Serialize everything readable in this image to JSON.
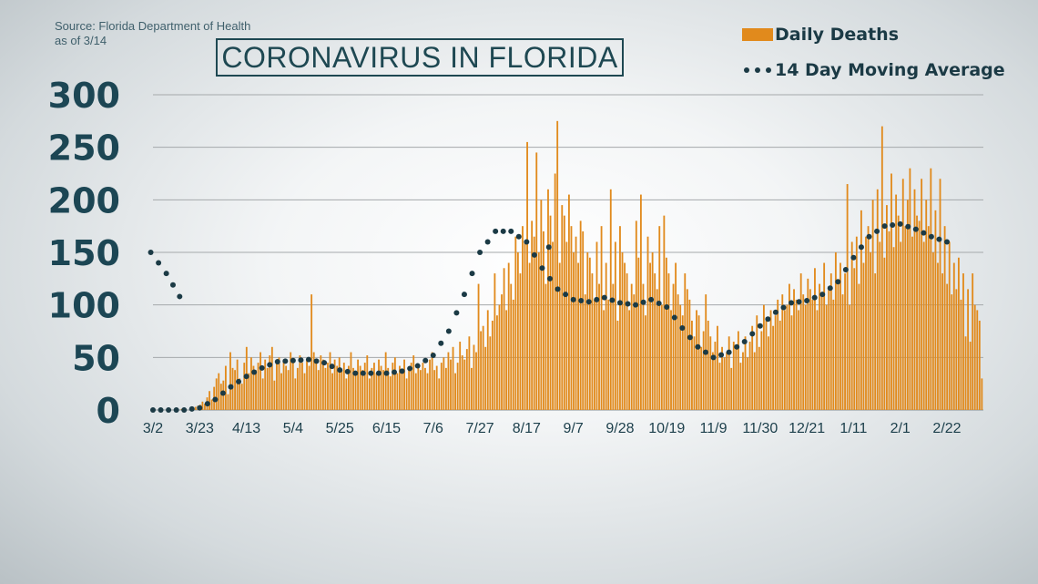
{
  "source_line1": "Source: Florida Department of Health",
  "source_line2": "as of 3/14",
  "title": "CORONAVIRUS IN FLORIDA",
  "legend": {
    "bars": "Daily Deaths",
    "line": "14 Day Moving Average"
  },
  "colors": {
    "bars": "#e18a1c",
    "line": "#1b3a45",
    "grid": "#a5a9ab",
    "axis": "#1c4654"
  },
  "chart_data": {
    "type": "bar",
    "title": "CORONAVIRUS IN FLORIDA",
    "xlabel": "",
    "ylabel": "",
    "ylim": [
      0,
      300
    ],
    "yticks": [
      0,
      50,
      100,
      150,
      200,
      250,
      300
    ],
    "xticks": [
      "3/2",
      "3/23",
      "4/13",
      "5/4",
      "5/25",
      "6/15",
      "7/6",
      "7/27",
      "8/17",
      "9/7",
      "9/28",
      "10/19",
      "11/9",
      "11/30",
      "12/21",
      "1/11",
      "2/1",
      "2/22"
    ],
    "grid": true,
    "legend_position": "top-right",
    "x_start": "3/2",
    "x_end": "3/14",
    "series": [
      {
        "name": "Daily Deaths",
        "type": "bar",
        "weekly_levels_note_free": true,
        "values": [
          0,
          0,
          0,
          0,
          0,
          0,
          0,
          0,
          0,
          0,
          0,
          0,
          1,
          1,
          0,
          0,
          1,
          2,
          3,
          4,
          5,
          8,
          6,
          12,
          18,
          10,
          22,
          30,
          35,
          25,
          28,
          42,
          15,
          55,
          40,
          38,
          48,
          30,
          25,
          45,
          60,
          35,
          50,
          42,
          38,
          45,
          55,
          30,
          48,
          40,
          52,
          60,
          28,
          45,
          50,
          35,
          48,
          42,
          38,
          55,
          45,
          30,
          40,
          52,
          45,
          35,
          48,
          42,
          110,
          55,
          45,
          38,
          52,
          48,
          40,
          45,
          55,
          35,
          48,
          42,
          50,
          38,
          45,
          30,
          42,
          55,
          40,
          35,
          48,
          42,
          38,
          45,
          52,
          30,
          40,
          45,
          35,
          48,
          42,
          38,
          55,
          40,
          32,
          45,
          50,
          35,
          42,
          38,
          48,
          30,
          40,
          45,
          52,
          35,
          42,
          38,
          45,
          40,
          35,
          48,
          55,
          38,
          42,
          30,
          45,
          50,
          40,
          55,
          48,
          60,
          35,
          45,
          65,
          52,
          48,
          58,
          70,
          40,
          62,
          55,
          120,
          75,
          80,
          60,
          95,
          70,
          85,
          130,
          90,
          100,
          110,
          135,
          95,
          140,
          120,
          105,
          165,
          150,
          130,
          175,
          160,
          255,
          140,
          180,
          165,
          245,
          150,
          200,
          170,
          120,
          210,
          185,
          160,
          225,
          275,
          140,
          195,
          185,
          160,
          205,
          175,
          150,
          165,
          140,
          180,
          170,
          110,
          150,
          145,
          130,
          105,
          160,
          120,
          175,
          95,
          140,
          105,
          210,
          120,
          160,
          85,
          175,
          150,
          140,
          130,
          95,
          120,
          110,
          180,
          145,
          205,
          120,
          90,
          165,
          140,
          150,
          130,
          115,
          175,
          100,
          185,
          145,
          130,
          95,
          120,
          140,
          110,
          100,
          90,
          130,
          115,
          105,
          85,
          70,
          95,
          90,
          60,
          75,
          110,
          85,
          70,
          55,
          65,
          80,
          45,
          60,
          50,
          55,
          70,
          40,
          65,
          60,
          75,
          45,
          55,
          70,
          50,
          65,
          80,
          55,
          90,
          60,
          75,
          100,
          85,
          70,
          95,
          80,
          90,
          105,
          85,
          110,
          95,
          100,
          120,
          90,
          115,
          105,
          95,
          130,
          110,
          100,
          125,
          115,
          105,
          135,
          95,
          120,
          110,
          140,
          100,
          115,
          130,
          105,
          150,
          120,
          140,
          110,
          130,
          215,
          100,
          160,
          135,
          165,
          120,
          190,
          140,
          165,
          175,
          150,
          200,
          130,
          210,
          160,
          270,
          145,
          195,
          170,
          225,
          155,
          205,
          185,
          160,
          220,
          175,
          200,
          230,
          165,
          210,
          185,
          180,
          220,
          160,
          200,
          175,
          230,
          150,
          190,
          140,
          220,
          130,
          175,
          120,
          160,
          110,
          140,
          115,
          145,
          105,
          130,
          70,
          115,
          65,
          130,
          100,
          95,
          85,
          30
        ]
      },
      {
        "name": "14 Day Moving Average",
        "type": "dotted-line",
        "points": [
          [
            "3/2",
            0
          ],
          [
            "3/9",
            0
          ],
          [
            "3/16",
            0
          ],
          [
            "3/23",
            2
          ],
          [
            "3/30",
            10
          ],
          [
            "4/6",
            22
          ],
          [
            "4/13",
            32
          ],
          [
            "4/20",
            40
          ],
          [
            "4/27",
            46
          ],
          [
            "5/4",
            47
          ],
          [
            "5/11",
            48
          ],
          [
            "5/18",
            45
          ],
          [
            "5/25",
            38
          ],
          [
            "6/1",
            35
          ],
          [
            "6/8",
            35
          ],
          [
            "6/15",
            35
          ],
          [
            "6/22",
            37
          ],
          [
            "6/29",
            42
          ],
          [
            "7/6",
            52
          ],
          [
            "7/13",
            75
          ],
          [
            "7/20",
            110
          ],
          [
            "7/27",
            150
          ],
          [
            "8/3",
            170
          ],
          [
            "8/10",
            170
          ],
          [
            "8/17",
            160
          ],
          [
            "8/24",
            135
          ],
          [
            "8/31",
            115
          ],
          [
            "9/7",
            105
          ],
          [
            "9/14",
            103
          ],
          [
            "9/21",
            107
          ],
          [
            "9/28",
            102
          ],
          [
            "10/5",
            100
          ],
          [
            "10/12",
            105
          ],
          [
            "10/19",
            98
          ],
          [
            "10/26",
            78
          ],
          [
            "11/2",
            60
          ],
          [
            "11/9",
            50
          ],
          [
            "11/16",
            55
          ],
          [
            "11/23",
            65
          ],
          [
            "11/30",
            80
          ],
          [
            "12/7",
            93
          ],
          [
            "12/14",
            102
          ],
          [
            "12/21",
            104
          ],
          [
            "12/28",
            110
          ],
          [
            "1/4",
            122
          ],
          [
            "1/11",
            145
          ],
          [
            "1/18",
            165
          ],
          [
            "1/25",
            175
          ],
          [
            "2/1",
            177
          ],
          [
            "2/8",
            172
          ],
          [
            "2/15",
            165
          ],
          [
            "2/22",
            160
          ],
          [
            "3/1",
            150
          ],
          [
            "3/8",
            130
          ],
          [
            "3/14",
            108
          ]
        ]
      }
    ]
  }
}
